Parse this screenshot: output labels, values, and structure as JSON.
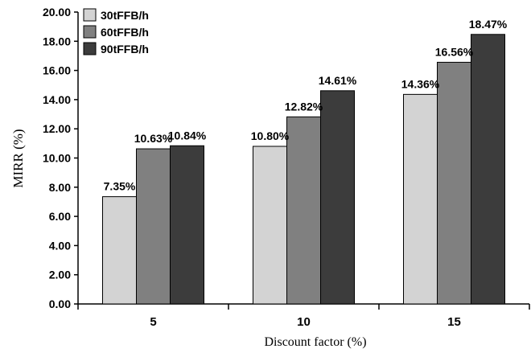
{
  "chart_data": {
    "type": "bar",
    "title": "",
    "xlabel": "Discount factor (%)",
    "ylabel": "MIRR (%)",
    "categories": [
      "5",
      "10",
      "15"
    ],
    "ylim": [
      0,
      20
    ],
    "yticks": [
      0,
      2,
      4,
      6,
      8,
      10,
      12,
      14,
      16,
      18,
      20
    ],
    "ytick_labels": [
      "0.00",
      "2.00",
      "4.00",
      "6.00",
      "8.00",
      "10.00",
      "12.00",
      "14.00",
      "16.00",
      "18.00",
      "20.00"
    ],
    "grid": false,
    "legend_position": "top-left",
    "series": [
      {
        "name": "30tFFB/h",
        "color": "#d3d3d3",
        "values": [
          7.35,
          10.8,
          14.36
        ],
        "labels": [
          "7.35%",
          "10.80%",
          "14.36%"
        ]
      },
      {
        "name": "60tFFB/h",
        "color": "#808080",
        "values": [
          10.63,
          12.82,
          16.56
        ],
        "labels": [
          "10.63%",
          "12.82%",
          "16.56%"
        ]
      },
      {
        "name": "90tFFB/h",
        "color": "#3c3c3c",
        "values": [
          10.84,
          14.61,
          18.47
        ],
        "labels": [
          "10.84%",
          "14.61%",
          "18.47%"
        ]
      }
    ]
  }
}
